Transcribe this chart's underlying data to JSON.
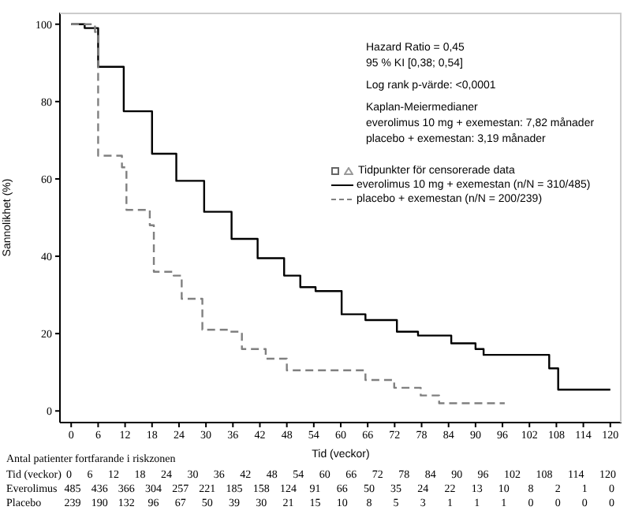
{
  "chart_data": {
    "type": "step",
    "xlabel": "Tid (veckor)",
    "ylabel": "Sannolikhet (%)",
    "xlim": [
      -2.5,
      122.5
    ],
    "ylim": [
      -3,
      103
    ],
    "xticks": [
      0,
      6,
      12,
      18,
      24,
      30,
      36,
      42,
      48,
      54,
      60,
      66,
      72,
      78,
      84,
      90,
      96,
      102,
      108,
      114,
      120
    ],
    "yticks": [
      0,
      20,
      40,
      60,
      80,
      100
    ],
    "legend": "top right",
    "legend_title": "Tidpunkter för censorerade data",
    "series": [
      {
        "name": "everolimus 10 mg + exemestan (n/N = 310/485)",
        "color": "#000000",
        "line_style": "solid",
        "x": [
          0,
          3,
          6,
          11.7,
          18,
          23.4,
          29.6,
          35.7,
          41.5,
          47.4,
          51,
          54.4,
          60.2,
          65.5,
          72.5,
          77.2,
          84.6,
          90,
          91.8,
          106.4,
          108.4,
          120
        ],
        "values": [
          100,
          99,
          89,
          77.5,
          66.5,
          59.5,
          51.5,
          44.5,
          39.5,
          35,
          32,
          31,
          25,
          23.5,
          20.5,
          19.5,
          17.5,
          16,
          14.5,
          11,
          5.5,
          5.5
        ]
      },
      {
        "name": "placebo + exemestan (n/N = 200/239)",
        "color": "#808080",
        "line_style": "dashed",
        "x": [
          0,
          5.3,
          6,
          11.3,
          12.3,
          17.5,
          18.4,
          22.8,
          24.6,
          29.2,
          35.1,
          38,
          43.3,
          48,
          65.5,
          71.9,
          77.8,
          81.9,
          96.5
        ],
        "values": [
          100,
          98,
          66,
          63,
          52,
          48,
          36,
          35,
          29,
          21,
          20.5,
          16,
          13.5,
          10.5,
          8,
          6,
          4,
          2,
          2
        ]
      }
    ],
    "annotations": [
      "Hazard Ratio = 0,45",
      "95 % KI [0,38; 0,54]",
      "Log rank p-värde: <0,0001",
      "Kaplan-Meiermedianer",
      "everolimus 10 mg + exemestan: 7,82 månader",
      "placebo + exemestan: 3,19 månader",
      "Antal patienter fortfarande i riskzonen",
      "Tid (veckor) 0 6 12 18 24 30 36 42 48 54 60 66 72 78 84 90 96 102 108 114 120",
      "Everolimus 485 436 366 304 257 221 185 158 124 91 66 50 35 24 22 13 10 8 2 1 0",
      "Placebo 239 190 132 96 67 50 39 30 21 15 10 8 5 3 1 1 1 0 0 0 0"
    ]
  }
}
